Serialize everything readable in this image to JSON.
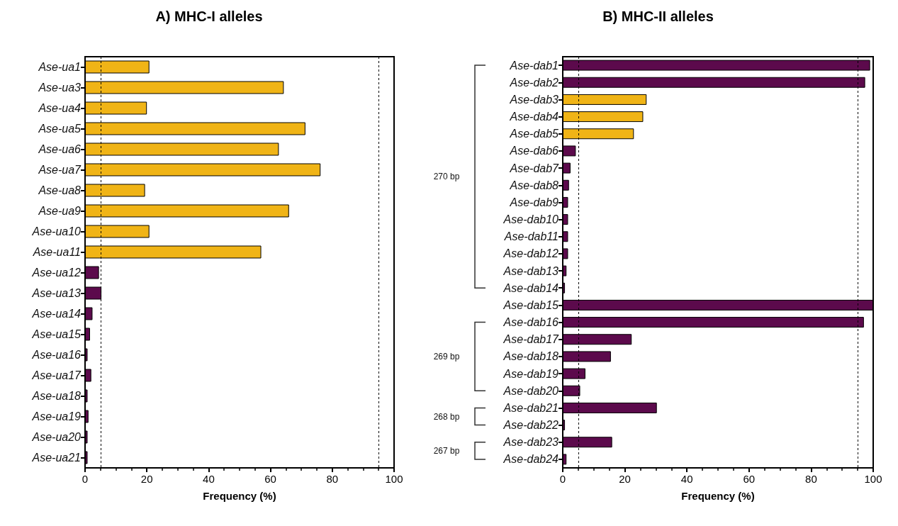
{
  "chart_data": [
    {
      "type": "bar",
      "orientation": "horizontal",
      "title": "A) MHC-I alleles",
      "xlabel": "Frequency (%)",
      "categories": [
        "Ase-ua1",
        "Ase-ua3",
        "Ase-ua4",
        "Ase-ua5",
        "Ase-ua6",
        "Ase-ua7",
        "Ase-ua8",
        "Ase-ua9",
        "Ase-ua10",
        "Ase-ua11",
        "Ase-ua12",
        "Ase-ua13",
        "Ase-ua14",
        "Ase-ua15",
        "Ase-ua16",
        "Ase-ua17",
        "Ase-ua18",
        "Ase-ua19",
        "Ase-ua20",
        "Ase-ua21"
      ],
      "values": [
        20.8,
        64.3,
        20.0,
        71.3,
        62.7,
        76.2,
        19.4,
        66.0,
        20.8,
        57.0,
        4.5,
        5.3,
        2.4,
        1.6,
        0.8,
        2.0,
        0.8,
        1.1,
        0.8,
        0.8
      ],
      "colors": [
        "#f0b416",
        "#f0b416",
        "#f0b416",
        "#f0b416",
        "#f0b416",
        "#f0b416",
        "#f0b416",
        "#f0b416",
        "#f0b416",
        "#f0b416",
        "#5c0a4c",
        "#5c0a4c",
        "#5c0a4c",
        "#5c0a4c",
        "#5c0a4c",
        "#5c0a4c",
        "#5c0a4c",
        "#5c0a4c",
        "#5c0a4c",
        "#5c0a4c"
      ],
      "xlim": [
        0,
        100
      ],
      "xticks": [
        0,
        20,
        40,
        60,
        80,
        100
      ],
      "ref_lines": [
        {
          "axis": "x",
          "value": 5,
          "color": "#000000",
          "line_style": "dashed"
        },
        {
          "axis": "x",
          "value": 95,
          "color": "#000000",
          "line_style": "dashed"
        }
      ]
    },
    {
      "type": "bar",
      "orientation": "horizontal",
      "title": "B) MHC-II alleles",
      "xlabel": "Frequency (%)",
      "categories": [
        "Ase-dab1",
        "Ase-dab2",
        "Ase-dab3",
        "Ase-dab4",
        "Ase-dab5",
        "Ase-dab6",
        "Ase-dab7",
        "Ase-dab8",
        "Ase-dab9",
        "Ase-dab10",
        "Ase-dab11",
        "Ase-dab12",
        "Ase-dab13",
        "Ase-dab14",
        "Ase-dab15",
        "Ase-dab16",
        "Ase-dab17",
        "Ase-dab18",
        "Ase-dab19",
        "Ase-dab20",
        "Ase-dab21",
        "Ase-dab22",
        "Ase-dab23",
        "Ase-dab24"
      ],
      "values": [
        99.0,
        97.4,
        27.0,
        25.9,
        22.9,
        4.2,
        2.5,
        2.0,
        1.7,
        1.7,
        1.7,
        1.7,
        1.2,
        0.7,
        100,
        97.0,
        22.2,
        15.5,
        7.3,
        5.6,
        30.3,
        0.7,
        15.9,
        1.2
      ],
      "colors": [
        "#5c0a4c",
        "#5c0a4c",
        "#f0b416",
        "#f0b416",
        "#f0b416",
        "#5c0a4c",
        "#5c0a4c",
        "#5c0a4c",
        "#5c0a4c",
        "#5c0a4c",
        "#5c0a4c",
        "#5c0a4c",
        "#5c0a4c",
        "#5c0a4c",
        "#5c0a4c",
        "#5c0a4c",
        "#5c0a4c",
        "#5c0a4c",
        "#5c0a4c",
        "#5c0a4c",
        "#5c0a4c",
        "#5c0a4c",
        "#5c0a4c",
        "#5c0a4c"
      ],
      "xlim": [
        0,
        100
      ],
      "xticks": [
        0,
        20,
        40,
        60,
        80,
        100
      ],
      "ref_lines": [
        {
          "axis": "x",
          "value": 5,
          "color": "#000000",
          "line_style": "dashed"
        },
        {
          "axis": "x",
          "value": 95,
          "color": "#000000",
          "line_style": "dashed"
        }
      ],
      "annotations": [
        "270 bp",
        "269 bp",
        "268 bp",
        "267 bp"
      ]
    }
  ]
}
